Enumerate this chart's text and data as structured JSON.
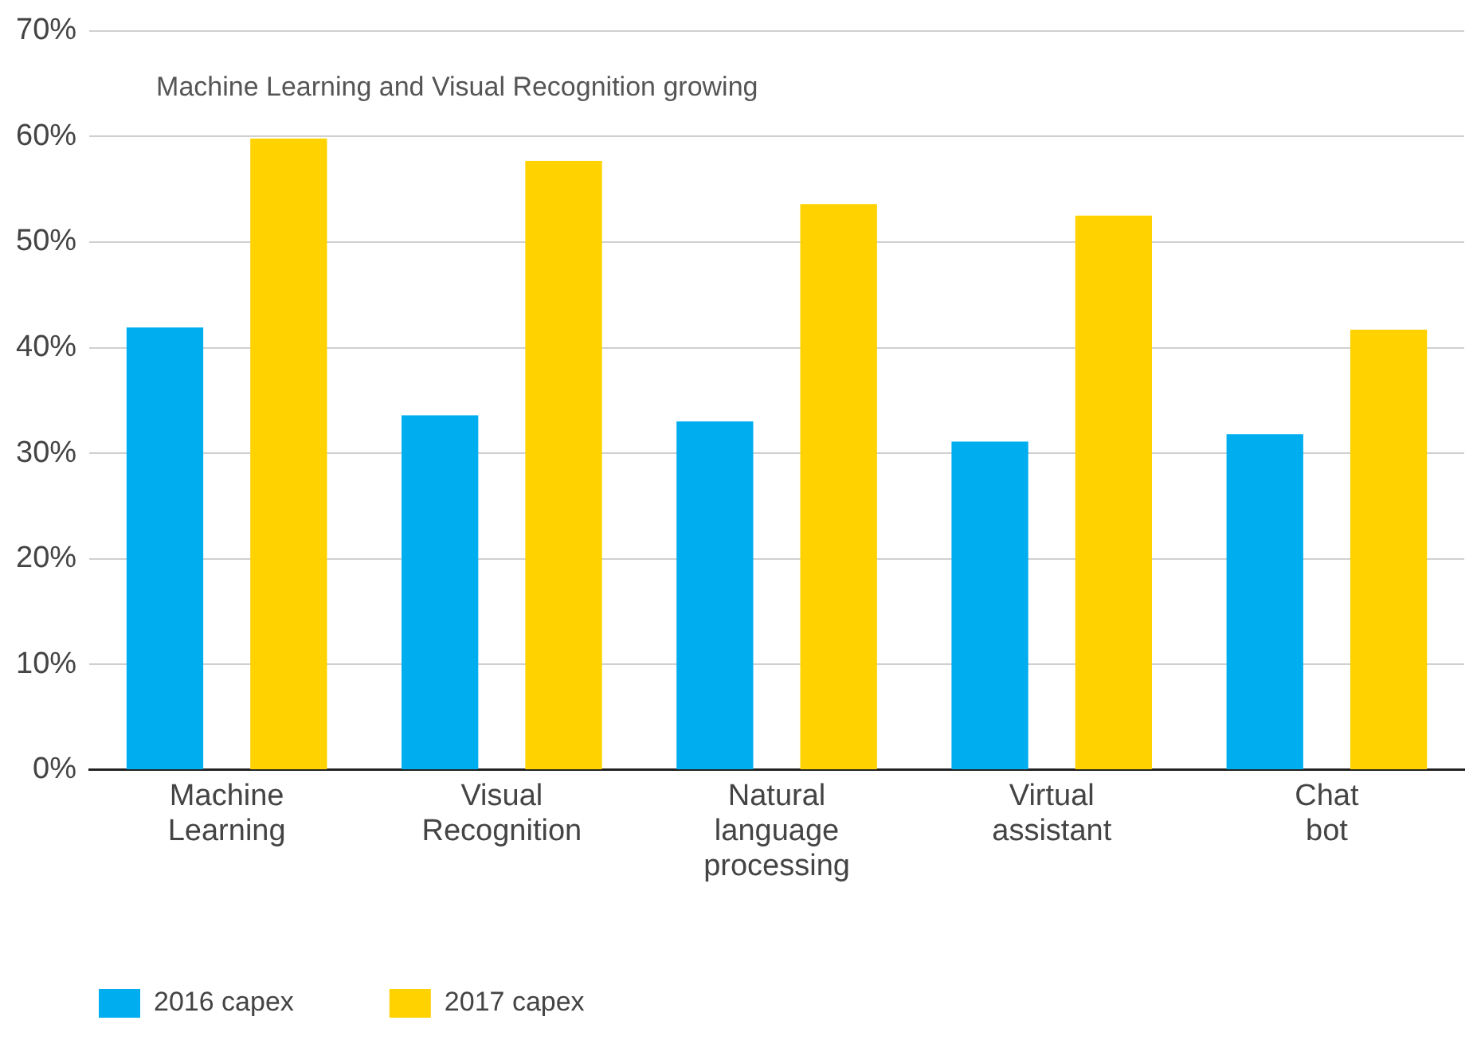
{
  "chart_data": {
    "type": "bar",
    "categories": [
      "Machine Learning",
      "Visual Recognition",
      "Natural language processing",
      "Virtual assistant",
      "Chat bot"
    ],
    "series": [
      {
        "name": "2016 capex",
        "color": "#00aeef",
        "values": [
          41.9,
          33.6,
          33.0,
          31.1,
          31.8
        ]
      },
      {
        "name": "2017 capex",
        "color": "#ffd200",
        "values": [
          59.8,
          57.7,
          53.6,
          52.5,
          41.7
        ]
      }
    ],
    "ylim": [
      0,
      70
    ],
    "yticks": [
      {
        "value": 0,
        "label": "0%"
      },
      {
        "value": 10,
        "label": "10%"
      },
      {
        "value": 20,
        "label": "20%"
      },
      {
        "value": 30,
        "label": "30%"
      },
      {
        "value": 40,
        "label": "40%"
      },
      {
        "value": 50,
        "label": "50%"
      },
      {
        "value": 60,
        "label": "60%"
      },
      {
        "value": 70,
        "label": "70%"
      }
    ],
    "grid": "y",
    "legend": "bottom left",
    "annotations": [
      "Machine Learning and Visual Recognition growing"
    ]
  }
}
